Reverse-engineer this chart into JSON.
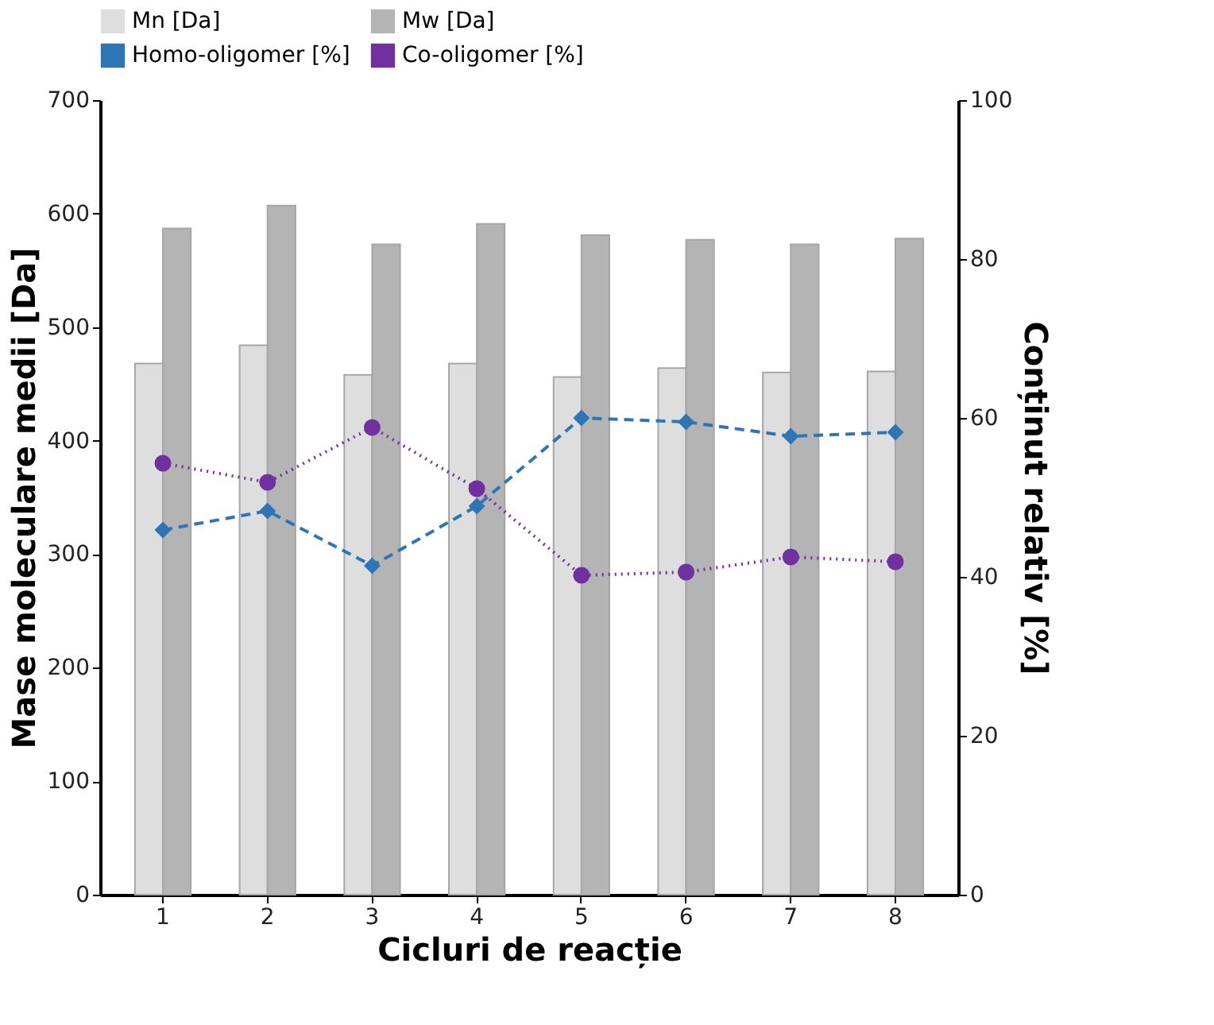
{
  "chart_data": {
    "type": "bar",
    "xlabel": "Cicluri de reacție",
    "ylabel": "Mase moleculare medii [Da]",
    "y2label": "Conținut relativ [%]",
    "categories": [
      "1",
      "2",
      "3",
      "4",
      "5",
      "6",
      "7",
      "8"
    ],
    "series": [
      {
        "name": "Mn [Da]",
        "color": "#dedede",
        "values": [
          468,
          484,
          458,
          468,
          456,
          464,
          460,
          461
        ]
      },
      {
        "name": "Mw [Da]",
        "color": "#b4b4b4",
        "values": [
          587,
          607,
          573,
          591,
          581,
          577,
          573,
          578
        ]
      },
      {
        "name": "Homo-oligomer [%]",
        "type": "line",
        "axis": "y2",
        "color": "#2e75b6",
        "marker": "diamond",
        "line_style": "dashed",
        "values": [
          45.9,
          48.3,
          41.4,
          48.9,
          60.0,
          59.5,
          57.7,
          58.2
        ]
      },
      {
        "name": "Co-oligomer [%]",
        "type": "line",
        "axis": "y2",
        "color": "#7030a0",
        "marker": "circle",
        "line_style": "dotted",
        "values": [
          54.3,
          51.9,
          58.8,
          51.1,
          40.2,
          40.6,
          42.5,
          41.9
        ]
      }
    ],
    "ylim": [
      0,
      700
    ],
    "yticks": [
      0,
      100,
      200,
      300,
      400,
      500,
      600,
      700
    ],
    "y2lim": [
      0,
      100
    ],
    "y2ticks": [
      0,
      20,
      40,
      60,
      80,
      100
    ],
    "grid": false,
    "legend": "top"
  }
}
